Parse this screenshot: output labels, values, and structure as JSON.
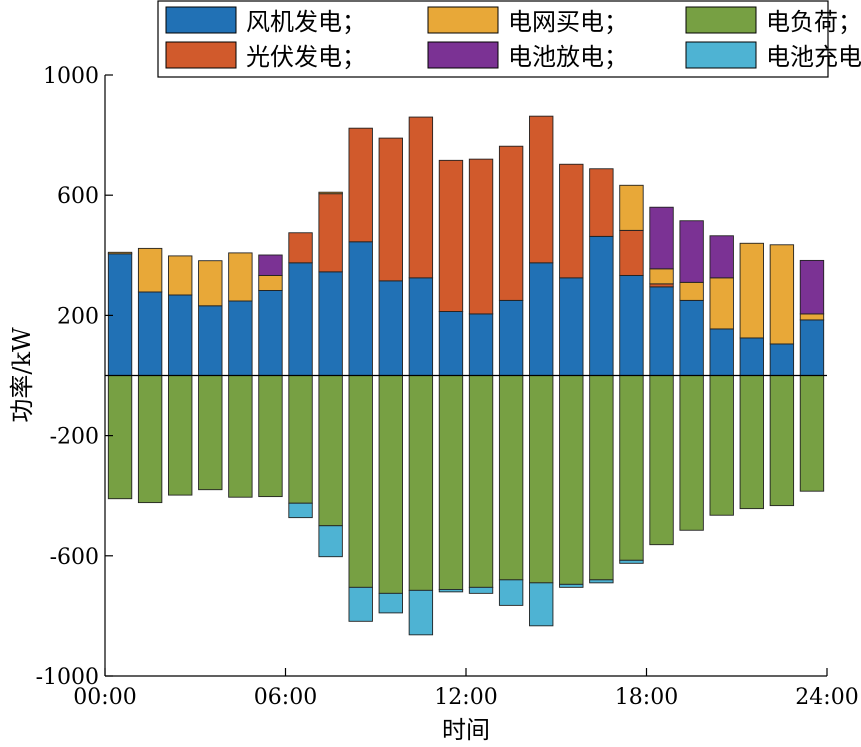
{
  "chart_data": {
    "type": "bar",
    "stacked": true,
    "xlabel": "时间",
    "ylabel": "功率/kW",
    "ylim": [
      -1000,
      1000
    ],
    "y_ticks": [
      1000,
      600,
      200,
      -200,
      -600,
      -1000
    ],
    "y_tick_labels": [
      "1000",
      "600",
      "200",
      "-200",
      "-600",
      "-1000"
    ],
    "x_range": [
      0,
      24
    ],
    "x_ticks": [
      0,
      6,
      12,
      18,
      24
    ],
    "x_tick_labels": [
      "00:00",
      "06:00",
      "12:00",
      "18:00",
      "24:00"
    ],
    "hours": [
      1,
      2,
      3,
      4,
      5,
      6,
      7,
      8,
      9,
      10,
      11,
      12,
      13,
      14,
      15,
      16,
      17,
      18,
      19,
      20,
      21,
      22,
      23,
      24
    ],
    "legend": {
      "placement": "top",
      "entries": [
        {
          "label": "风机发电；",
          "color": "#2171b5"
        },
        {
          "label": "电网买电；",
          "color": "#e8a838"
        },
        {
          "label": "电负荷；",
          "color": "#77a043"
        },
        {
          "label": "光伏发电；",
          "color": "#d15a2c"
        },
        {
          "label": "电池放电；",
          "color": "#7b3294"
        },
        {
          "label": "电池充电",
          "color": "#4eb3d3"
        }
      ]
    },
    "series": [
      {
        "key": "wind",
        "name": "风机发电",
        "color": "#2171b5",
        "stack": "positive",
        "values": [
          405,
          278,
          268,
          232,
          248,
          283,
          375,
          345,
          445,
          315,
          325,
          213,
          205,
          250,
          375,
          325,
          463,
          333,
          295,
          250,
          155,
          125,
          105,
          185
        ]
      },
      {
        "key": "pv",
        "name": "光伏发电",
        "color": "#d15a2c",
        "stack": "positive",
        "values": [
          0,
          0,
          0,
          0,
          0,
          0,
          100,
          260,
          378,
          475,
          535,
          503,
          515,
          513,
          488,
          378,
          225,
          150,
          10,
          0,
          0,
          0,
          0,
          0
        ]
      },
      {
        "key": "grid",
        "name": "电网买电",
        "color": "#e8a838",
        "stack": "positive",
        "values": [
          5,
          145,
          130,
          150,
          160,
          50,
          0,
          5,
          0,
          0,
          0,
          0,
          0,
          0,
          0,
          0,
          0,
          150,
          50,
          60,
          170,
          315,
          330,
          20
        ]
      },
      {
        "key": "batt_dis",
        "name": "电池放电",
        "color": "#7b3294",
        "stack": "positive",
        "values": [
          0,
          0,
          0,
          0,
          0,
          68,
          0,
          0,
          0,
          0,
          0,
          0,
          0,
          0,
          0,
          0,
          0,
          0,
          205,
          205,
          140,
          0,
          0,
          178
        ]
      },
      {
        "key": "load",
        "name": "电负荷",
        "color": "#77a043",
        "stack": "negative",
        "values": [
          -410,
          -423,
          -398,
          -380,
          -405,
          -403,
          -425,
          -500,
          -705,
          -725,
          -715,
          -712,
          -705,
          -680,
          -690,
          -695,
          -680,
          -615,
          -563,
          -515,
          -465,
          -443,
          -433,
          -385
        ]
      },
      {
        "key": "batt_chg",
        "name": "电池充电",
        "color": "#4eb3d3",
        "stack": "negative",
        "values": [
          0,
          0,
          0,
          0,
          0,
          0,
          -48,
          -103,
          -113,
          -65,
          -148,
          -8,
          -20,
          -85,
          -143,
          -10,
          -10,
          -10,
          0,
          0,
          0,
          0,
          0,
          0
        ]
      }
    ]
  }
}
